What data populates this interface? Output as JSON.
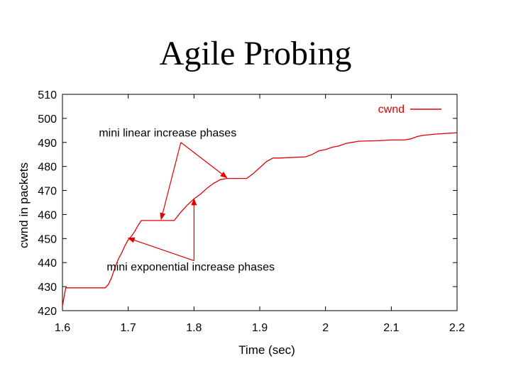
{
  "slide": {
    "title": "Agile Probing"
  },
  "chart_data": {
    "type": "line",
    "title": "",
    "xlabel": "Time (sec)",
    "ylabel": "cwnd in packets",
    "xlim": [
      1.6,
      2.2
    ],
    "ylim": [
      420,
      510
    ],
    "xticks": [
      {
        "value": 1.6,
        "label": "1.6"
      },
      {
        "value": 1.7,
        "label": "1.7"
      },
      {
        "value": 1.8,
        "label": "1.8"
      },
      {
        "value": 1.9,
        "label": "1.9"
      },
      {
        "value": 2.0,
        "label": "2"
      },
      {
        "value": 2.1,
        "label": "2.1"
      },
      {
        "value": 2.2,
        "label": "2.2"
      }
    ],
    "yticks": [
      {
        "value": 420,
        "label": "420"
      },
      {
        "value": 430,
        "label": "430"
      },
      {
        "value": 440,
        "label": "440"
      },
      {
        "value": 450,
        "label": "450"
      },
      {
        "value": 460,
        "label": "460"
      },
      {
        "value": 470,
        "label": "470"
      },
      {
        "value": 480,
        "label": "480"
      },
      {
        "value": 490,
        "label": "490"
      },
      {
        "value": 500,
        "label": "500"
      },
      {
        "value": 510,
        "label": "510"
      }
    ],
    "grid": false,
    "legend": {
      "position": "top-right"
    },
    "colors": {
      "series": "#e00000",
      "axis": "#000000",
      "annotation_text": "#000000"
    },
    "series": [
      {
        "name": "cwnd",
        "x": [
          1.6,
          1.605,
          1.61,
          1.665,
          1.67,
          1.675,
          1.68,
          1.685,
          1.69,
          1.695,
          1.7,
          1.705,
          1.71,
          1.715,
          1.72,
          1.75,
          1.77,
          1.78,
          1.79,
          1.8,
          1.81,
          1.82,
          1.83,
          1.84,
          1.85,
          1.88,
          1.89,
          1.9,
          1.91,
          1.92,
          1.93,
          1.97,
          1.98,
          1.99,
          2.0,
          2.01,
          2.02,
          2.03,
          2.04,
          2.05,
          2.08,
          2.1,
          2.12,
          2.13,
          2.14,
          2.15,
          2.17,
          2.2
        ],
        "y": [
          422,
          429.5,
          429.5,
          429.5,
          431,
          434,
          438,
          441.5,
          444,
          447,
          449.5,
          451,
          453,
          455.5,
          457.5,
          457.5,
          457.5,
          461,
          464,
          466.5,
          468.5,
          471,
          473,
          474.5,
          475,
          475,
          477,
          479.5,
          482,
          483.5,
          483.5,
          484,
          485,
          486.5,
          487,
          488,
          488.5,
          489.5,
          490,
          490.5,
          490.7,
          491,
          491,
          491.5,
          492.5,
          493,
          493.5,
          494
        ]
      }
    ],
    "annotations": [
      {
        "text": "mini linear increase phases",
        "label_at": [
          1.76,
          492.5
        ],
        "arrow_from": [
          1.78,
          490
        ],
        "arrow_to": [
          [
            1.75,
            458
          ],
          [
            1.85,
            475.3
          ]
        ]
      },
      {
        "text": "mini exponential increase phases",
        "label_at": [
          1.795,
          436.6
        ],
        "arrow_from": [
          1.8,
          440.8
        ],
        "arrow_to": [
          [
            1.7,
            450.2
          ],
          [
            1.8,
            466.5
          ]
        ]
      }
    ]
  }
}
